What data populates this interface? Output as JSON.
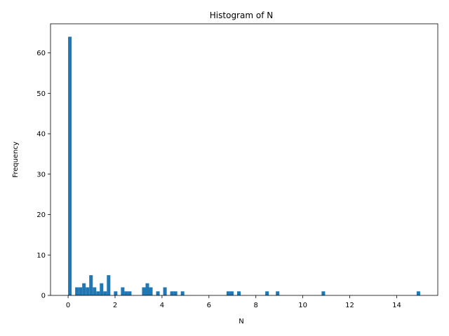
{
  "chart_data": {
    "type": "bar",
    "title": "Histogram of N",
    "xlabel": "N",
    "ylabel": "Frequency",
    "xlim": [
      -0.75,
      15.75
    ],
    "ylim": [
      0,
      67.2
    ],
    "xticks": [
      0,
      2,
      4,
      6,
      8,
      10,
      12,
      14
    ],
    "yticks": [
      0,
      10,
      20,
      30,
      40,
      50,
      60
    ],
    "grid": false,
    "bar_color": "#1f77b4",
    "bin_start": 0,
    "bin_width": 0.15,
    "values": [
      64,
      0,
      2,
      2,
      3,
      2,
      5,
      2,
      1,
      3,
      1,
      5,
      0,
      1,
      0,
      2,
      1,
      1,
      0,
      0,
      0,
      2,
      3,
      2,
      0,
      1,
      0,
      2,
      0,
      1,
      1,
      0,
      1,
      0,
      0,
      0,
      0,
      0,
      0,
      0,
      0,
      0,
      0,
      0,
      0,
      1,
      1,
      0,
      1,
      0,
      0,
      0,
      0,
      0,
      0,
      0,
      1,
      0,
      0,
      1,
      0,
      0,
      0,
      0,
      0,
      0,
      0,
      0,
      0,
      0,
      0,
      0,
      1,
      0,
      0,
      0,
      0,
      0,
      0,
      0,
      0,
      0,
      0,
      0,
      0,
      0,
      0,
      0,
      0,
      0,
      0,
      0,
      0,
      0,
      0,
      0,
      0,
      0,
      0,
      1
    ]
  }
}
